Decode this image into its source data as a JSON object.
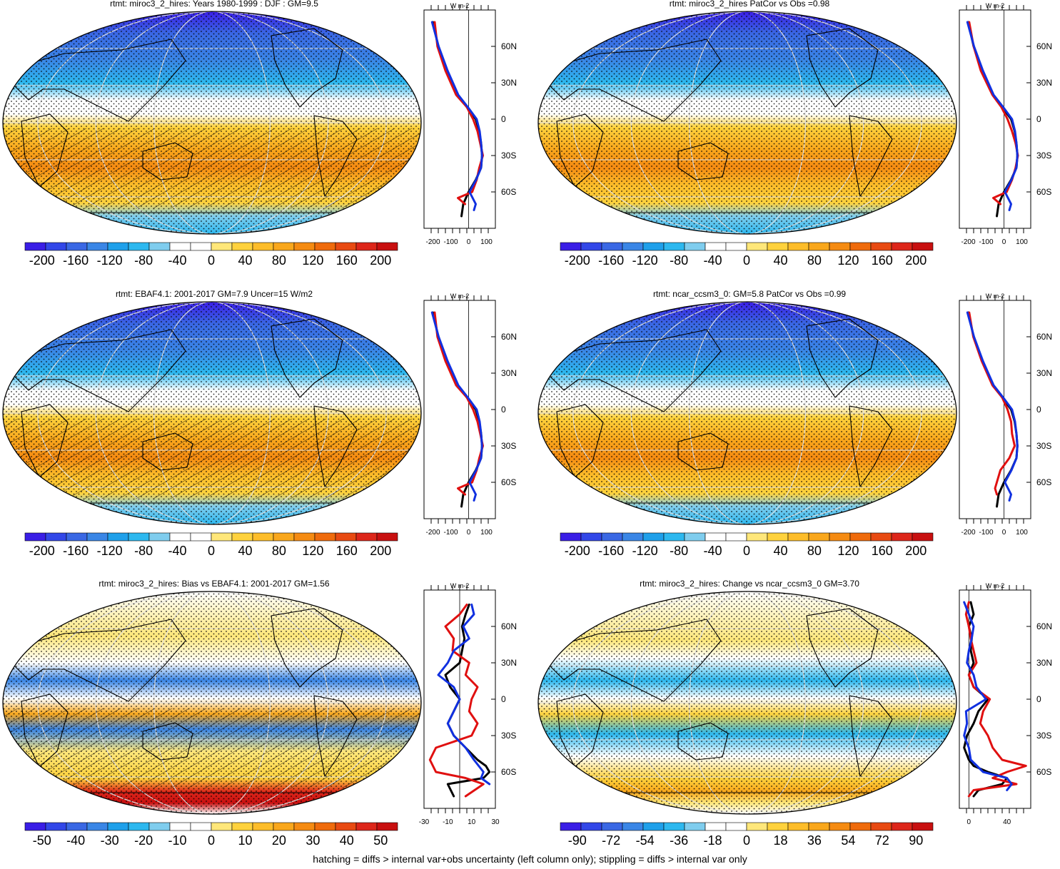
{
  "footer": "hatching = diffs > internal var+obs uncertainty (left column only); stippling = diffs > internal var only",
  "chart_data": [
    {
      "type": "heatmap",
      "title": "rtmt: miroc3_2_hires: Years 1980-1999 : DJF : GM=9.5",
      "colorbar_labels": [
        "-200",
        "-160",
        "-120",
        "-80",
        "-40",
        "0",
        "40",
        "80",
        "120",
        "160",
        "200"
      ],
      "colorbar_range": [
        -220,
        220
      ],
      "profile_unit": "W m-2",
      "profile_xticks": [
        "-200",
        "-100",
        "0",
        "100"
      ],
      "profile_xlim": [
        -250,
        150
      ],
      "lat_ticks": [
        "60N",
        "30N",
        "0",
        "30S",
        "60S"
      ],
      "series": [
        {
          "color": "#000000",
          "lat": [
            80,
            60,
            40,
            20,
            10,
            0,
            -10,
            -20,
            -30,
            -40,
            -50,
            -60,
            -70,
            -80
          ],
          "values": [
            -200,
            -170,
            -120,
            -60,
            -10,
            40,
            60,
            70,
            75,
            70,
            40,
            0,
            -30,
            -40
          ]
        },
        {
          "color": "#e01010",
          "lat": [
            80,
            60,
            40,
            20,
            10,
            0,
            -10,
            -20,
            -30,
            -40,
            -50,
            -60,
            -65,
            -70
          ],
          "values": [
            -190,
            -175,
            -130,
            -70,
            -10,
            25,
            50,
            65,
            80,
            60,
            45,
            20,
            -60,
            -20
          ]
        },
        {
          "color": "#1030e0",
          "lat": [
            80,
            60,
            40,
            20,
            10,
            0,
            -10,
            -20,
            -30,
            -40,
            -50,
            -60,
            -70,
            -75
          ],
          "values": [
            -205,
            -168,
            -118,
            -58,
            -5,
            45,
            62,
            70,
            75,
            70,
            42,
            5,
            40,
            30
          ]
        }
      ],
      "stipple": true,
      "hatch": true
    },
    {
      "type": "heatmap",
      "title": "rtmt: miroc3_2_hires PatCor vs Obs =0.98",
      "colorbar_labels": [
        "-200",
        "-160",
        "-120",
        "-80",
        "-40",
        "0",
        "40",
        "80",
        "120",
        "160",
        "200"
      ],
      "colorbar_range": [
        -220,
        220
      ],
      "profile_unit": "W m-2",
      "profile_xticks": [
        "-200",
        "-100",
        "0",
        "100"
      ],
      "profile_xlim": [
        -250,
        150
      ],
      "lat_ticks": [
        "60N",
        "30N",
        "0",
        "30S",
        "60S"
      ],
      "series": [
        {
          "color": "#000000",
          "lat": [
            80,
            60,
            40,
            20,
            10,
            0,
            -10,
            -20,
            -30,
            -40,
            -50,
            -60,
            -70,
            -80
          ],
          "values": [
            -200,
            -170,
            -120,
            -60,
            -10,
            40,
            60,
            70,
            75,
            70,
            40,
            0,
            -30,
            -40
          ]
        },
        {
          "color": "#e01010",
          "lat": [
            80,
            60,
            40,
            20,
            10,
            0,
            -10,
            -20,
            -30,
            -40,
            -50,
            -60,
            -65,
            -70
          ],
          "values": [
            -195,
            -170,
            -130,
            -65,
            -15,
            20,
            45,
            65,
            78,
            65,
            45,
            15,
            -60,
            -20
          ]
        },
        {
          "color": "#1030e0",
          "lat": [
            80,
            60,
            40,
            20,
            10,
            0,
            -10,
            -20,
            -30,
            -40,
            -50,
            -60,
            -70,
            -75
          ],
          "values": [
            -205,
            -168,
            -118,
            -58,
            -5,
            45,
            62,
            70,
            75,
            70,
            42,
            5,
            40,
            30
          ]
        }
      ],
      "stipple": true,
      "hatch": false
    },
    {
      "type": "heatmap",
      "title": "rtmt: EBAF4.1: 2001-2017 GM=7.9 Uncer=15 W/m2",
      "colorbar_labels": [
        "-200",
        "-160",
        "-120",
        "-80",
        "-40",
        "0",
        "40",
        "80",
        "120",
        "160",
        "200"
      ],
      "colorbar_range": [
        -220,
        220
      ],
      "profile_unit": "W m-2",
      "profile_xticks": [
        "-200",
        "-100",
        "0",
        "100"
      ],
      "profile_xlim": [
        -250,
        150
      ],
      "lat_ticks": [
        "60N",
        "30N",
        "0",
        "30S",
        "60S"
      ],
      "series": [
        {
          "color": "#000000",
          "lat": [
            80,
            60,
            40,
            20,
            10,
            0,
            -10,
            -20,
            -30,
            -40,
            -50,
            -60,
            -70,
            -80
          ],
          "values": [
            -200,
            -170,
            -120,
            -60,
            -10,
            40,
            60,
            70,
            75,
            70,
            40,
            0,
            -30,
            -40
          ]
        },
        {
          "color": "#e01010",
          "lat": [
            80,
            60,
            40,
            20,
            10,
            0,
            -10,
            -20,
            -30,
            -40,
            -50,
            -60,
            -65,
            -70
          ],
          "values": [
            -190,
            -175,
            -130,
            -70,
            -10,
            25,
            50,
            65,
            80,
            60,
            45,
            20,
            -60,
            -20
          ]
        },
        {
          "color": "#1030e0",
          "lat": [
            80,
            60,
            40,
            20,
            10,
            0,
            -10,
            -20,
            -30,
            -40,
            -50,
            -60,
            -70,
            -75
          ],
          "values": [
            -205,
            -168,
            -118,
            -58,
            -5,
            45,
            62,
            70,
            75,
            70,
            42,
            5,
            40,
            30
          ]
        }
      ],
      "stipple": true,
      "hatch": true
    },
    {
      "type": "heatmap",
      "title": "rtmt: ncar_ccsm3_0: GM=5.8 PatCor vs Obs =0.99",
      "colorbar_labels": [
        "-200",
        "-160",
        "-120",
        "-80",
        "-40",
        "0",
        "40",
        "80",
        "120",
        "160",
        "200"
      ],
      "colorbar_range": [
        -220,
        220
      ],
      "profile_unit": "W m-2",
      "profile_xticks": [
        "-200",
        "-100",
        "0",
        "100"
      ],
      "profile_xlim": [
        -250,
        150
      ],
      "lat_ticks": [
        "60N",
        "30N",
        "0",
        "30S",
        "60S"
      ],
      "series": [
        {
          "color": "#000000",
          "lat": [
            80,
            60,
            40,
            20,
            10,
            0,
            -10,
            -20,
            -30,
            -40,
            -50,
            -60,
            -70,
            -80
          ],
          "values": [
            -200,
            -170,
            -120,
            -60,
            -10,
            40,
            60,
            70,
            75,
            70,
            40,
            0,
            -30,
            -40
          ]
        },
        {
          "color": "#e01010",
          "lat": [
            80,
            60,
            40,
            20,
            10,
            0,
            -10,
            -20,
            -30,
            -40,
            -50,
            -60,
            -65,
            -70
          ],
          "values": [
            -195,
            -172,
            -125,
            -65,
            -10,
            20,
            40,
            45,
            60,
            30,
            -20,
            -40,
            -50,
            -40
          ]
        },
        {
          "color": "#1030e0",
          "lat": [
            80,
            60,
            40,
            20,
            10,
            0,
            -10,
            -20,
            -30,
            -40,
            -50,
            -60,
            -70,
            -75
          ],
          "values": [
            -205,
            -168,
            -118,
            -58,
            -5,
            45,
            62,
            70,
            75,
            70,
            42,
            5,
            40,
            30
          ]
        }
      ],
      "stipple": true,
      "hatch": false
    },
    {
      "type": "heatmap",
      "title": "rtmt: miroc3_2_hires: Bias vs EBAF4.1: 2001-2017 GM=1.56",
      "colorbar_labels": [
        "-50",
        "-40",
        "-30",
        "-20",
        "-10",
        "0",
        "10",
        "20",
        "30",
        "40",
        "50"
      ],
      "colorbar_range": [
        -55,
        55
      ],
      "profile_unit": "W m-2",
      "profile_xticks": [
        "-30",
        "-10",
        "10",
        "30"
      ],
      "profile_xlim": [
        -30,
        30
      ],
      "lat_ticks": [
        "60N",
        "30N",
        "0",
        "30S",
        "60S"
      ],
      "series": [
        {
          "color": "#000000",
          "lat": [
            78,
            70,
            60,
            50,
            40,
            30,
            20,
            10,
            0,
            -10,
            -20,
            -30,
            -40,
            -50,
            -55,
            -60,
            -65,
            -70,
            -80
          ],
          "values": [
            8,
            5,
            2,
            4,
            2,
            0,
            -12,
            -8,
            0,
            -5,
            -10,
            -5,
            5,
            15,
            22,
            25,
            20,
            -10,
            -5
          ]
        },
        {
          "color": "#e01010",
          "lat": [
            78,
            70,
            60,
            50,
            40,
            30,
            20,
            10,
            0,
            -10,
            -20,
            -30,
            -40,
            -50,
            -60,
            -65,
            -70,
            -80
          ],
          "values": [
            6,
            0,
            -12,
            -5,
            -6,
            8,
            5,
            15,
            10,
            8,
            15,
            10,
            -20,
            -25,
            -20,
            5,
            20,
            5
          ]
        },
        {
          "color": "#1030e0",
          "lat": [
            78,
            70,
            60,
            50,
            40,
            30,
            20,
            10,
            0,
            -10,
            -20,
            -30,
            -40,
            -50,
            -60,
            -65,
            -70
          ],
          "values": [
            10,
            12,
            3,
            8,
            -5,
            -10,
            -18,
            -5,
            0,
            -5,
            -10,
            -5,
            5,
            12,
            20,
            18,
            25
          ]
        }
      ],
      "stipple": true,
      "hatch": true
    },
    {
      "type": "heatmap",
      "title": "rtmt: miroc3_2_hires: Change vs ncar_ccsm3_0 GM=3.70",
      "colorbar_labels": [
        "-90",
        "-72",
        "-54",
        "-36",
        "-18",
        "0",
        "18",
        "36",
        "54",
        "72",
        "90"
      ],
      "colorbar_range": [
        -99,
        99
      ],
      "profile_unit": "W m-2",
      "profile_xticks": [
        "0",
        "40"
      ],
      "profile_xlim": [
        -10,
        65
      ],
      "lat_ticks": [
        "60N",
        "30N",
        "0",
        "30S",
        "60S"
      ],
      "series": [
        {
          "color": "#000000",
          "lat": [
            80,
            70,
            60,
            50,
            40,
            30,
            20,
            10,
            0,
            -10,
            -20,
            -30,
            -40,
            -50,
            -55,
            -60,
            -65,
            -70,
            -75,
            -80
          ],
          "values": [
            2,
            5,
            0,
            3,
            2,
            5,
            0,
            5,
            20,
            10,
            5,
            -2,
            -5,
            0,
            5,
            20,
            40,
            35,
            10,
            5
          ]
        },
        {
          "color": "#e01010",
          "lat": [
            80,
            70,
            60,
            50,
            40,
            30,
            20,
            10,
            0,
            -10,
            -20,
            -30,
            -40,
            -50,
            -55,
            -60,
            -65,
            -70,
            -75,
            -80
          ],
          "values": [
            0,
            -3,
            0,
            2,
            5,
            8,
            0,
            5,
            22,
            15,
            12,
            20,
            25,
            35,
            60,
            40,
            25,
            50,
            5,
            0
          ]
        },
        {
          "color": "#1030e0",
          "lat": [
            80,
            70,
            60,
            50,
            40,
            30,
            20,
            10,
            0,
            -10,
            -20,
            -30,
            -40,
            -50,
            -60,
            -65,
            -70,
            -75
          ],
          "values": [
            -5,
            0,
            5,
            3,
            0,
            -2,
            5,
            8,
            18,
            -3,
            -2,
            -5,
            0,
            2,
            15,
            40,
            45,
            40
          ]
        }
      ],
      "stipple": true,
      "hatch": false
    }
  ]
}
